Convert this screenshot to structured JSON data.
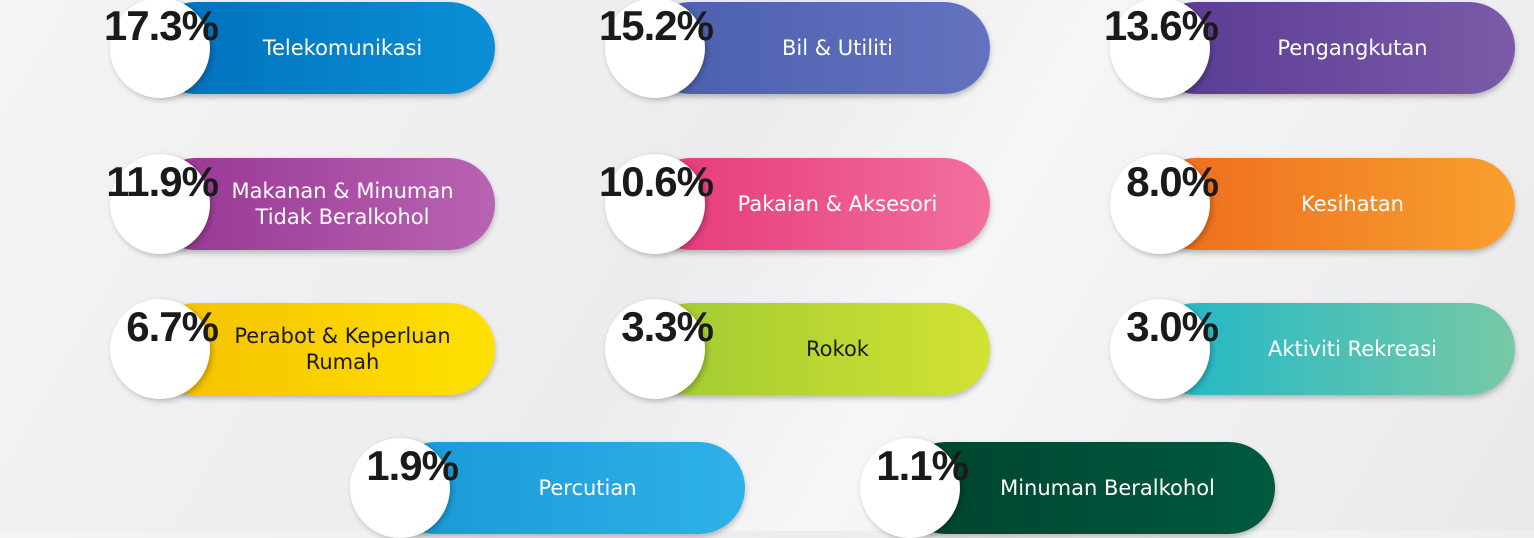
{
  "items": [
    {
      "value": "17.3%",
      "label": [
        "Telekomunikasi"
      ]
    },
    {
      "value": "15.2%",
      "label": [
        "Bil & Utiliti"
      ]
    },
    {
      "value": "13.6%",
      "label": [
        "Pengangkutan"
      ]
    },
    {
      "value": "11.9%",
      "label": [
        "Makanan & Minuman",
        "Tidak Beralkohol"
      ]
    },
    {
      "value": "10.6%",
      "label": [
        "Pakaian & Aksesori"
      ]
    },
    {
      "value": "8.0%",
      "label": [
        "Kesihatan"
      ]
    },
    {
      "value": "6.7%",
      "label": [
        "Perabot & Keperluan",
        "Rumah"
      ]
    },
    {
      "value": "3.3%",
      "label": [
        "Rokok"
      ]
    },
    {
      "value": "3.0%",
      "label": [
        "Aktiviti Rekreasi"
      ]
    },
    {
      "value": "1.9%",
      "label": [
        "Percutian"
      ]
    },
    {
      "value": "1.1%",
      "label": [
        "Minuman Beralkohol"
      ]
    }
  ]
}
